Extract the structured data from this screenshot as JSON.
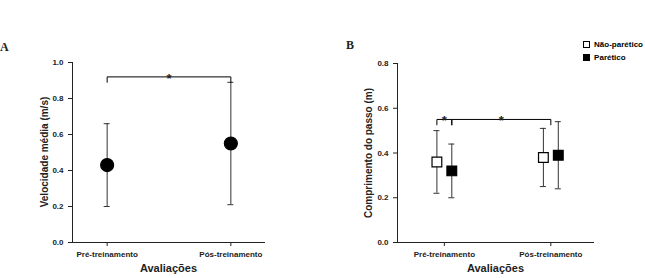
{
  "chart_data": [
    {
      "type": "scatter",
      "panel_label": "A",
      "x_label": "Avaliações",
      "y_label": "Velocidade média (m/s)",
      "categories": [
        "Pré-treinamento",
        "Pós-treinamento"
      ],
      "values": [
        0.43,
        0.55
      ],
      "lower": [
        0.2,
        0.21
      ],
      "upper": [
        0.66,
        0.89
      ],
      "color": "#000000",
      "marker": "circle",
      "ylim": [
        0,
        1
      ],
      "yticks": [
        {
          "value": 0,
          "label": "0.0"
        },
        0.2,
        0.4,
        0.6,
        0.8,
        {
          "value": 1,
          "label": "1.0"
        }
      ],
      "annotations": [
        {
          "text": "*",
          "from": {
            "category": "Pré-treinamento"
          },
          "to": {
            "category": "Pós-treinamento"
          },
          "y": 0.92
        }
      ]
    },
    {
      "type": "scatter",
      "panel_label": "B",
      "x_label": "Avaliações",
      "y_label": "Comprimento do passo (m)",
      "categories": [
        "Pré-treinamento",
        "Pós-treinamento"
      ],
      "series": [
        {
          "name": "Não-parético",
          "color": "#ffffff",
          "marker": "square",
          "values": [
            0.36,
            0.38
          ],
          "lower": [
            0.22,
            0.25
          ],
          "upper": [
            0.5,
            0.51
          ]
        },
        {
          "name": "Parético",
          "color": "#000000",
          "marker": "square",
          "values": [
            0.32,
            0.39
          ],
          "lower": [
            0.2,
            0.24
          ],
          "upper": [
            0.44,
            0.54
          ]
        }
      ],
      "legend": "top-right",
      "ylim": [
        0,
        0.8
      ],
      "yticks": [
        {
          "value": 0,
          "label": "0.0"
        },
        0.2,
        0.4,
        0.6,
        0.8
      ],
      "annotations": [
        {
          "text": "*",
          "from": {
            "category": "Pré-treinamento",
            "series": "Não-parético"
          },
          "to": {
            "category": "Pré-treinamento",
            "series": "Parético"
          },
          "y": 0.55
        },
        {
          "text": "*",
          "from": {
            "category": "Pré-treinamento",
            "series": "Parético"
          },
          "to": {
            "category": "Pós-treinamento"
          },
          "y": 0.55
        }
      ]
    }
  ]
}
